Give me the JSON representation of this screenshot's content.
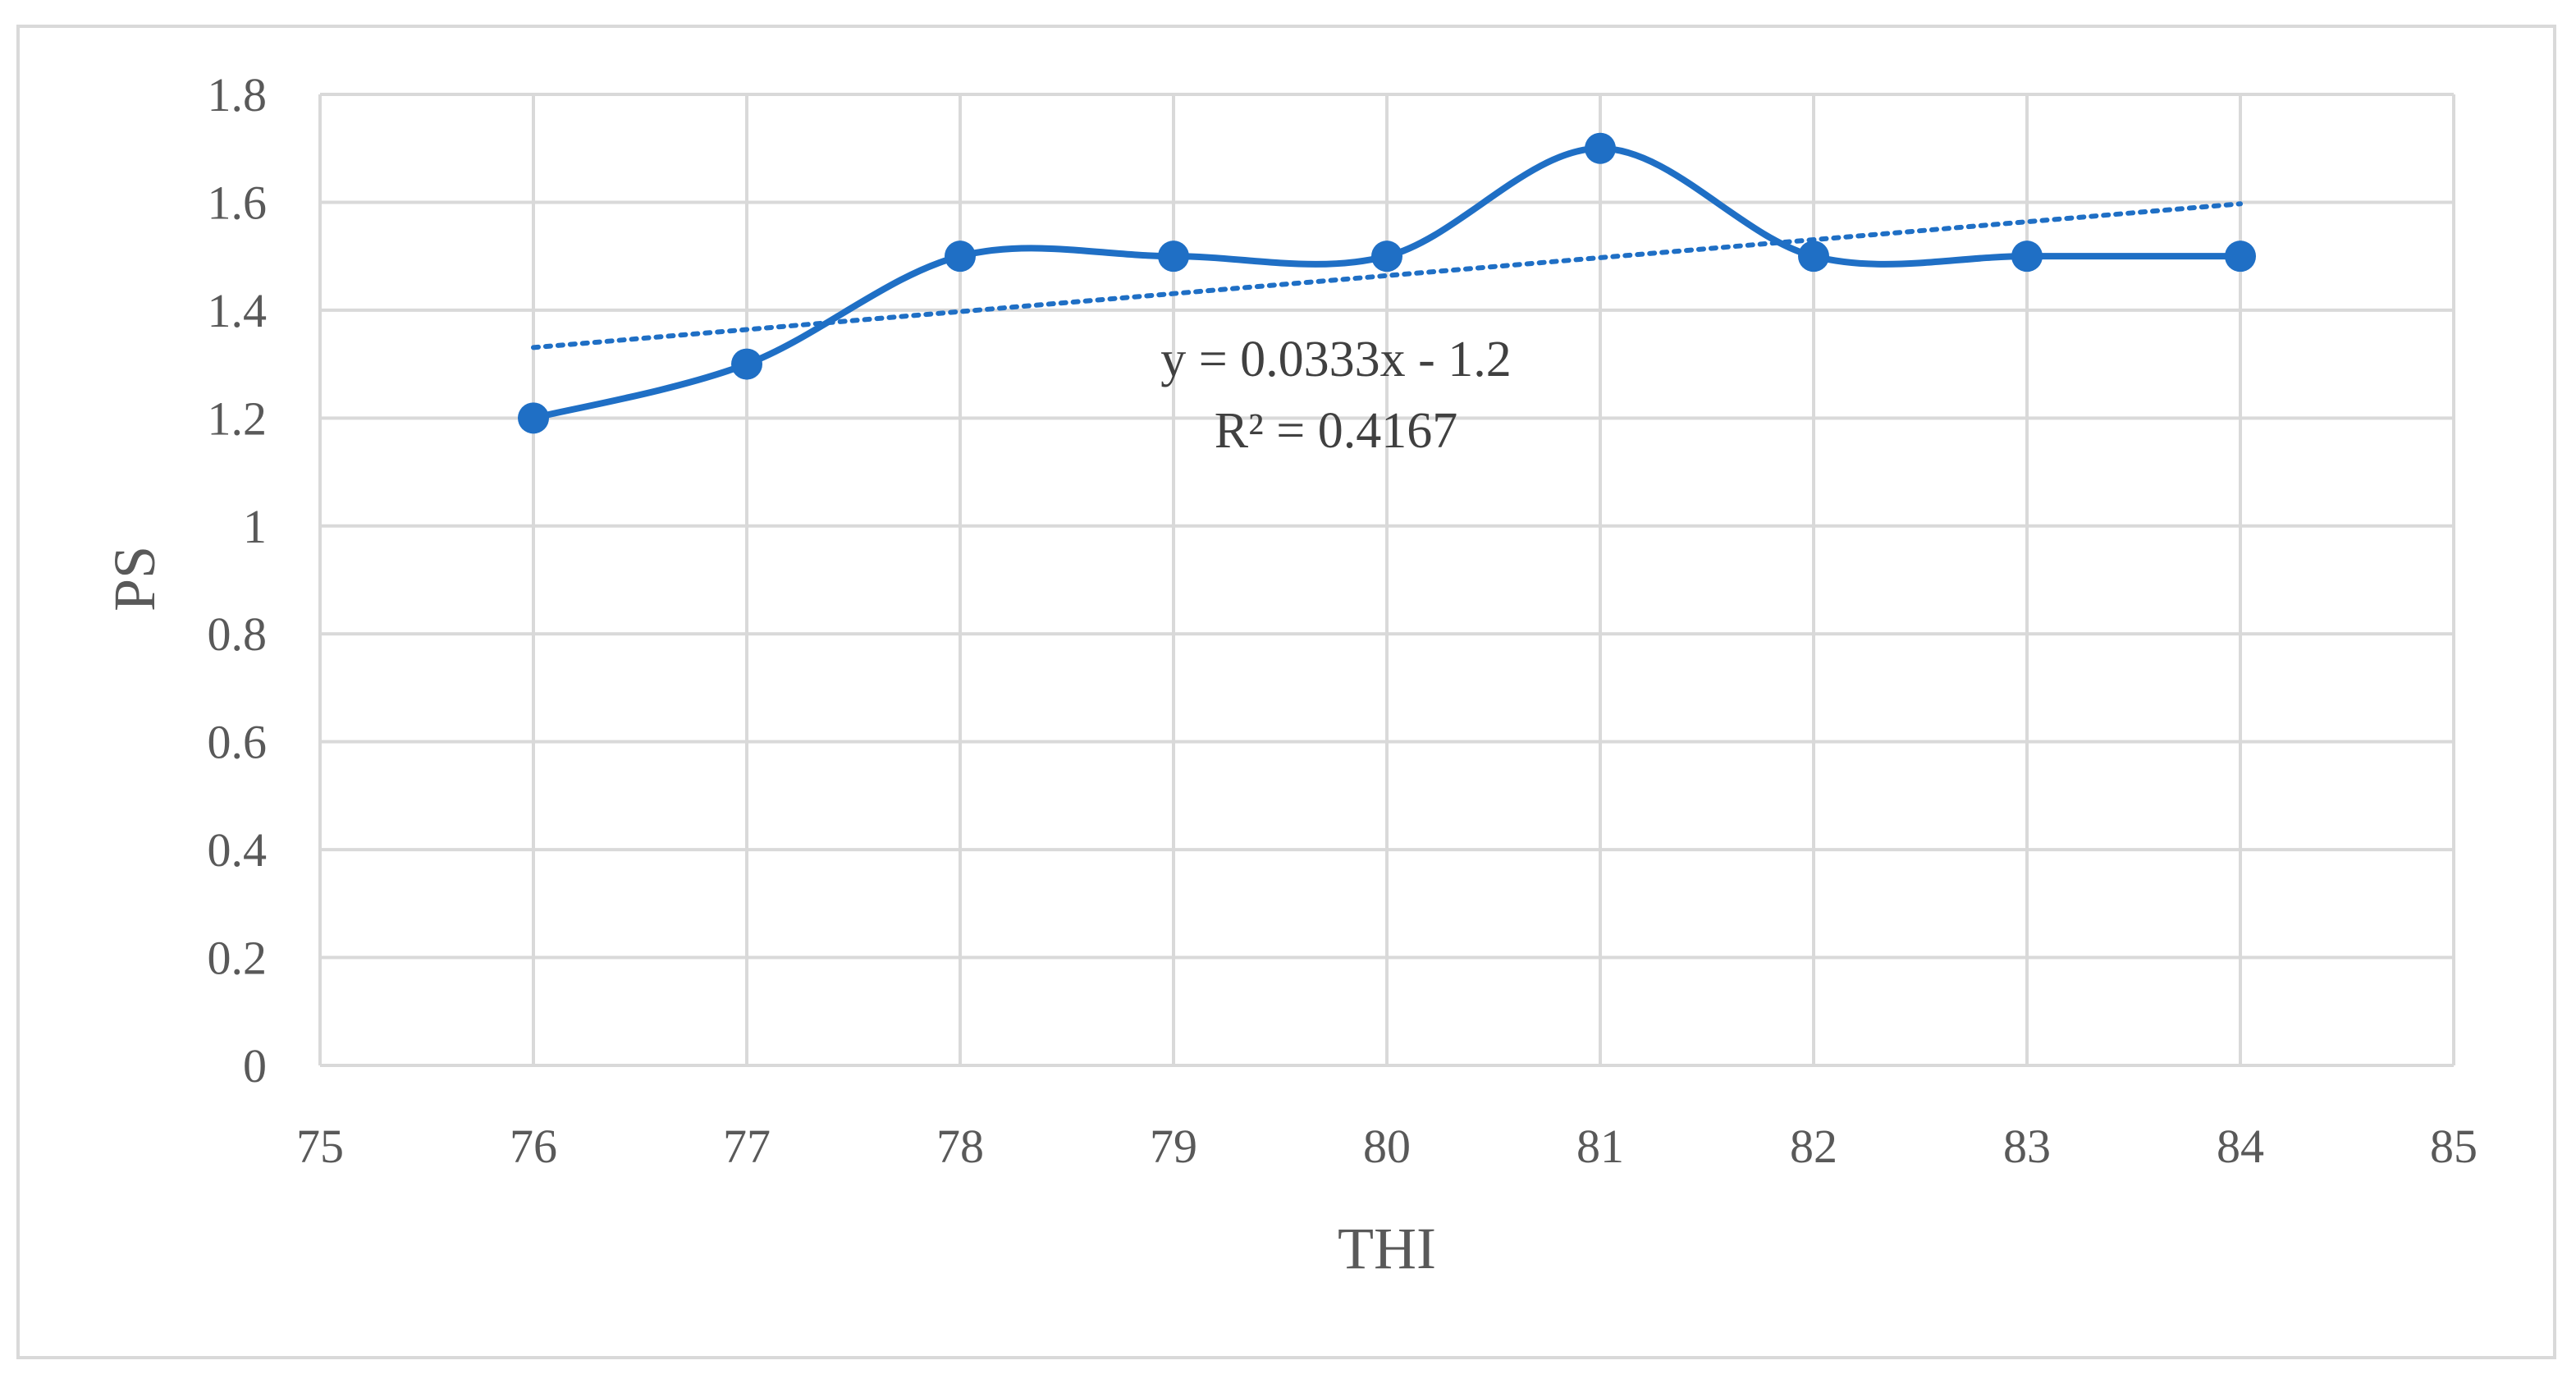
{
  "chart_data": {
    "type": "scatter",
    "title": "",
    "xlabel": "THI",
    "ylabel": "PS",
    "xlim": [
      75,
      85
    ],
    "ylim": [
      0,
      1.8
    ],
    "xticks": [
      "75",
      "76",
      "77",
      "78",
      "79",
      "80",
      "81",
      "82",
      "83",
      "84",
      "85"
    ],
    "yticks": [
      "0",
      "0.2",
      "0.4",
      "0.6",
      "0.8",
      "1",
      "1.2",
      "1.4",
      "1.6",
      "1.8"
    ],
    "grid": true,
    "smooth_line": true,
    "series": [
      {
        "x": [
          76,
          77,
          78,
          79,
          80,
          81,
          82,
          83,
          84
        ],
        "y": [
          1.2,
          1.3,
          1.5,
          1.5,
          1.5,
          1.7,
          1.5,
          1.5,
          1.5
        ],
        "color": "#1f6fc5"
      }
    ],
    "trendline": {
      "style": "dotted",
      "slope": 0.0333,
      "intercept": -1.2,
      "x_range": [
        76,
        84
      ],
      "equation_label": "y = 0.0333x - 1.2",
      "r2_label": "R² = 0.4167"
    }
  }
}
